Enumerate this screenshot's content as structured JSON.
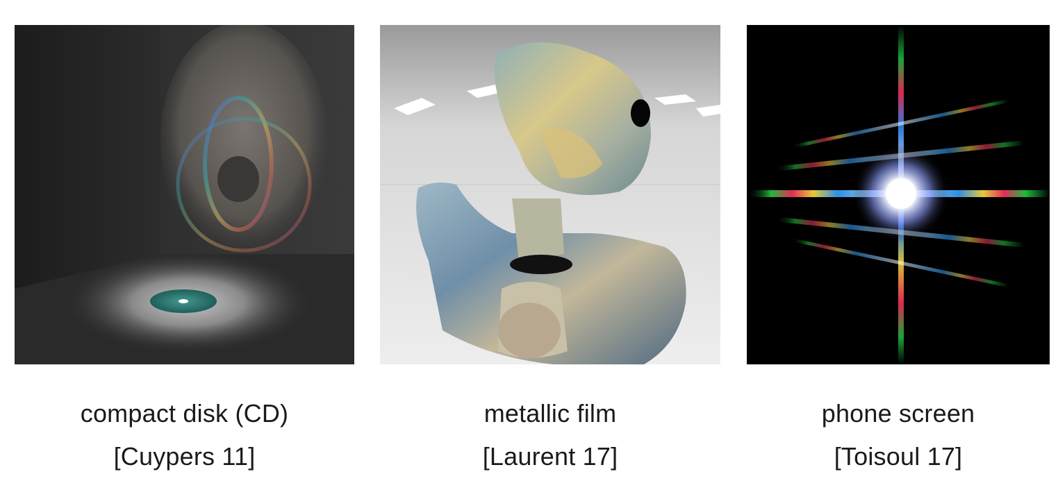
{
  "figures": [
    {
      "title": "compact disk (CD)",
      "citation": "[Cuypers 11]",
      "image": "cd-render-image"
    },
    {
      "title": "metallic film",
      "citation": "[Laurent 17]",
      "image": "metallic-bust-render-image"
    },
    {
      "title": "phone screen",
      "citation": "[Toisoul 17]",
      "image": "diffraction-star-render-image"
    }
  ]
}
